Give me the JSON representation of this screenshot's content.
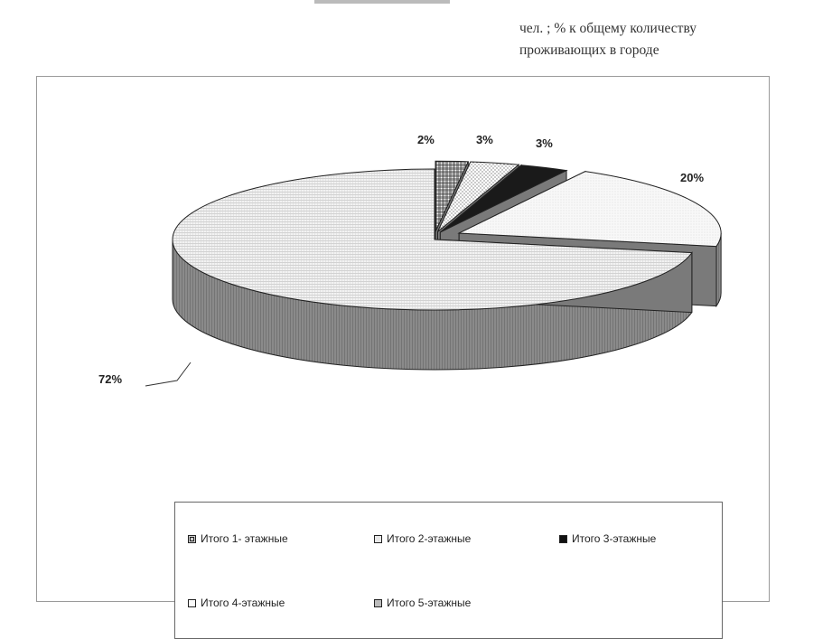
{
  "header": {
    "line1": "чел. ; % к общему количеству",
    "line2": "проживающих в городе"
  },
  "chart_data": {
    "type": "pie",
    "title": "",
    "categories": [
      "Итого 1- этажные",
      "Итого 2-этажные",
      "Итого 3-этажные",
      "Итого 4-этажные",
      "Итого 5-этажные"
    ],
    "values": [
      2,
      3,
      3,
      20,
      72
    ],
    "data_labels": [
      "2%",
      "3%",
      "3%",
      "20%",
      "72%"
    ],
    "colors": [
      "#d8d8d8",
      "#ececec",
      "#1a1a1a",
      "#f6f6f6",
      "#e4e4e4"
    ],
    "side_color": "#8a8a8a",
    "legend_position": "bottom",
    "exploded": true,
    "three_d": true
  }
}
